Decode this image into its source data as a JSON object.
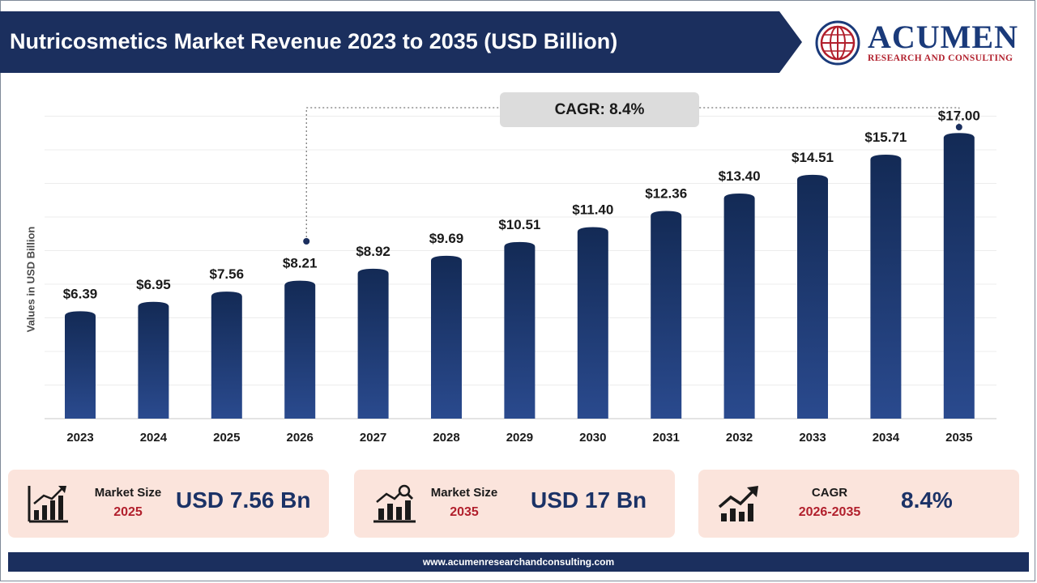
{
  "header": {
    "title": "Nutricosmetics Market Revenue 2023 to 2035 (USD Billion)"
  },
  "logo": {
    "name": "ACUMEN",
    "tagline": "RESEARCH AND CONSULTING"
  },
  "colors": {
    "banner": "#1b2f5e",
    "bar_top": "#132a55",
    "bar_bottom": "#2a4a8e",
    "card_bg": "#fbe4dc",
    "accent_red": "#b11f2c"
  },
  "chart_data": {
    "type": "bar",
    "title": "Nutricosmetics Market Revenue 2023 to 2035 (USD Billion)",
    "ylabel": "Values in USD Billion",
    "xlabel": "",
    "categories": [
      "2023",
      "2024",
      "2025",
      "2026",
      "2027",
      "2028",
      "2029",
      "2030",
      "2031",
      "2032",
      "2033",
      "2034",
      "2035"
    ],
    "values": [
      6.39,
      6.95,
      7.56,
      8.21,
      8.92,
      9.69,
      10.51,
      11.4,
      12.36,
      13.4,
      14.51,
      15.71,
      17.0
    ],
    "data_labels": [
      "$6.39",
      "$6.95",
      "$7.56",
      "$8.21",
      "$8.92",
      "$9.69",
      "$10.51",
      "$11.40",
      "$12.36",
      "$13.40",
      "$14.51",
      "$15.71",
      "$17.00"
    ],
    "ylim": [
      0,
      18
    ],
    "grid": true,
    "annotation": {
      "text": "CAGR: 8.4%",
      "from": "2026",
      "to": "2035"
    }
  },
  "cards": [
    {
      "icon": "bar-chart-growth-icon",
      "label": "Market Size",
      "year": "2025",
      "value": "USD 7.56 Bn"
    },
    {
      "icon": "analytics-magnifier-icon",
      "label": "Market Size",
      "year": "2035",
      "value": "USD 17 Bn"
    },
    {
      "icon": "trend-up-icon",
      "label": "CAGR",
      "year": "2026-2035",
      "value": "8.4%"
    }
  ],
  "footer": {
    "url": "www.acumenresearchandconsulting.com"
  }
}
